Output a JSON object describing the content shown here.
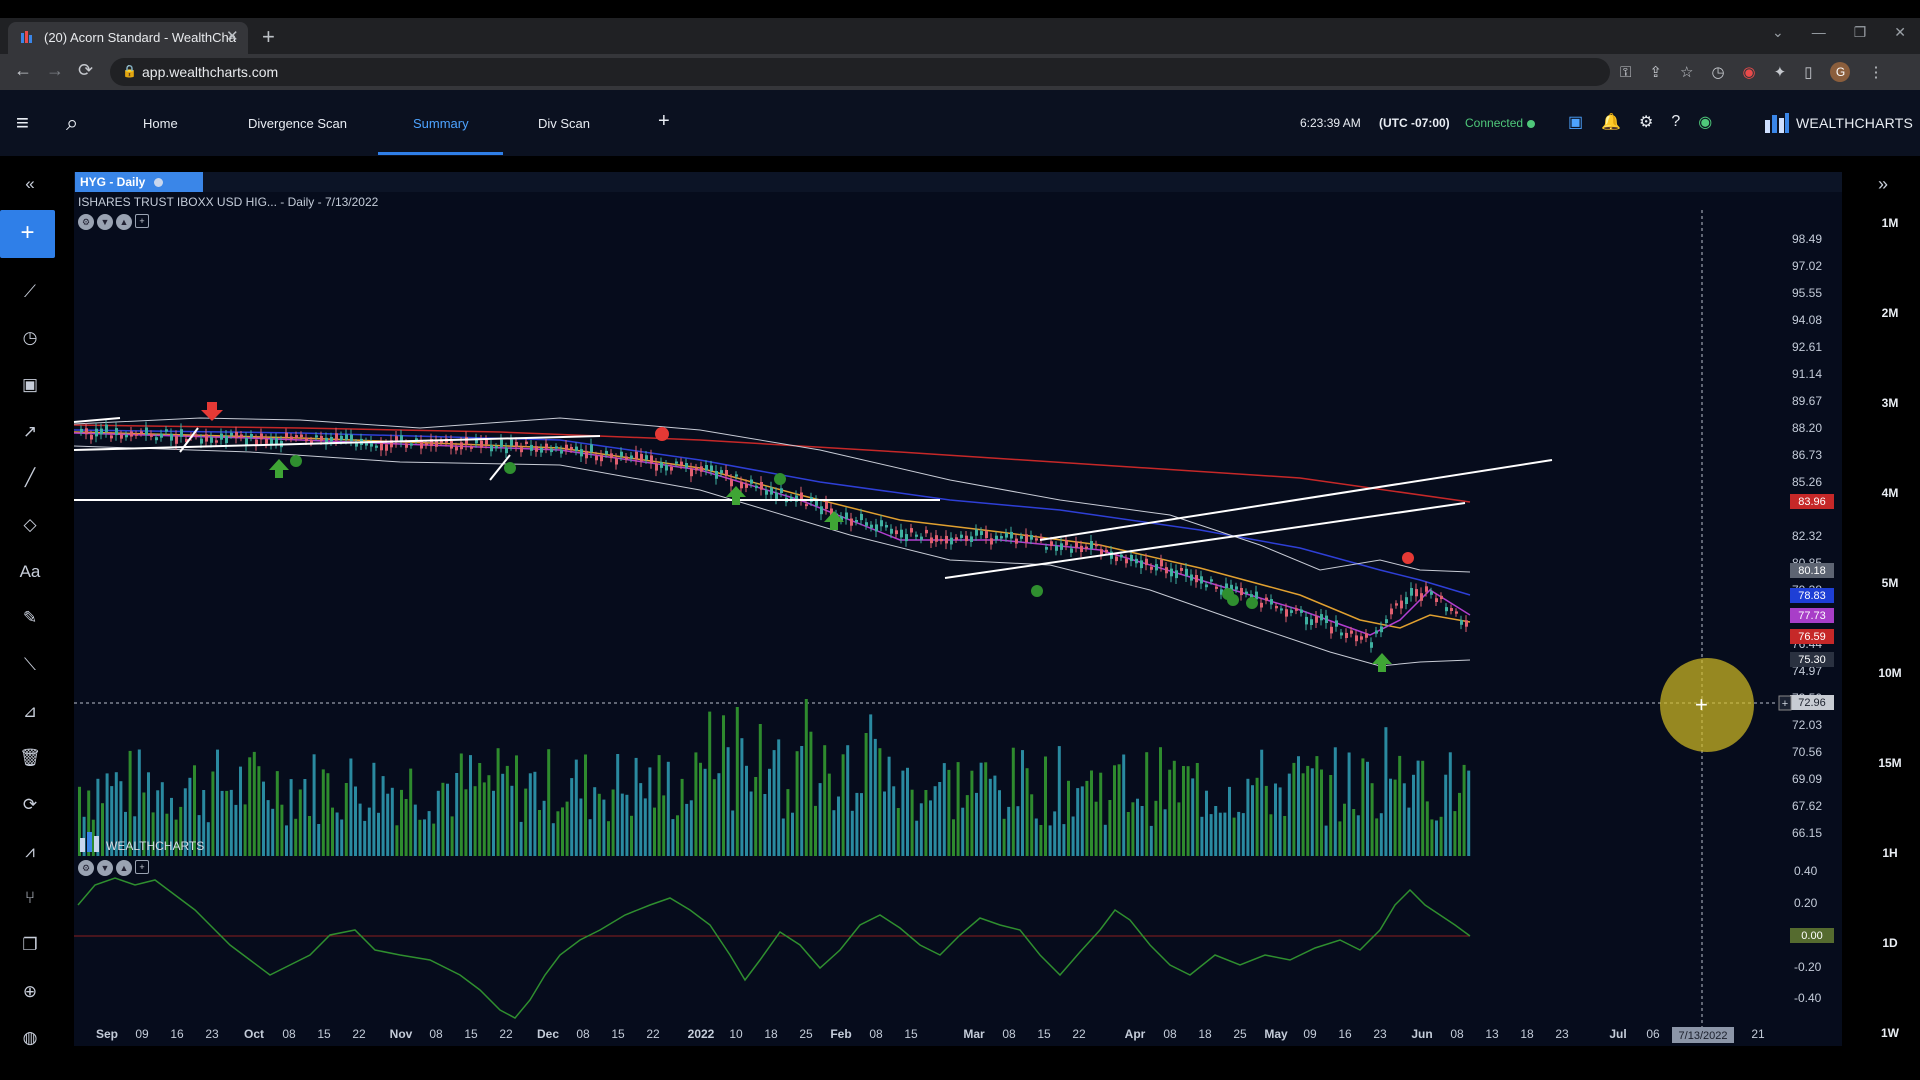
{
  "browser": {
    "tab_title": "(20) Acorn Standard - WealthCha",
    "tab_close": "✕",
    "new_tab": "+",
    "url": "app.wealthcharts.com",
    "win_minimize": "—",
    "win_restore": "❐",
    "win_close": "✕"
  },
  "nav": {
    "menu_icon": "≡",
    "search_icon": "⌕",
    "tabs": [
      "Home",
      "Divergence Scan",
      "Summary",
      "Div Scan"
    ],
    "add_tab": "+",
    "time": "6:23:39 AM",
    "timezone": "(UTC -07:00)",
    "status": "Connected",
    "brand": "WEALTHCHARTS"
  },
  "chart": {
    "symbol_badge": "HYG - Daily",
    "description": "ISHARES TRUST IBOXX USD HIG...",
    "interval_date": "- Daily - 7/13/2022",
    "watermark": "WEALTHCHARTS",
    "price_axis": [
      "98.49",
      "97.02",
      "95.55",
      "94.08",
      "92.61",
      "91.14",
      "89.67",
      "88.20",
      "86.73",
      "85.26",
      "82.32",
      "80.85",
      "79.38",
      "77.91",
      "76.44",
      "74.97",
      "73.50",
      "72.03",
      "70.56",
      "69.09",
      "67.62",
      "66.15"
    ],
    "price_tags": [
      {
        "label": "83.96",
        "color": "#c62828"
      },
      {
        "label": "80.18",
        "color": "#5d6472"
      },
      {
        "label": "78.83",
        "color": "#1e3fd6"
      },
      {
        "label": "77.73",
        "color": "#a83ec8"
      },
      {
        "label": "76.59",
        "color": "#c62828"
      },
      {
        "label": "75.30",
        "color": "#2a3140"
      },
      {
        "label": "72.96",
        "color": "#c8ccd3"
      }
    ],
    "osc_axis": [
      "0.40",
      "0.20",
      "-0.20",
      "-0.40"
    ],
    "osc_tag": "0.00",
    "date_axis": [
      "Sep",
      "09",
      "16",
      "23",
      "Oct",
      "08",
      "15",
      "22",
      "Nov",
      "08",
      "15",
      "22",
      "Dec",
      "08",
      "15",
      "22",
      "2022",
      "10",
      "18",
      "25",
      "Feb",
      "08",
      "15",
      "Mar",
      "08",
      "15",
      "22",
      "Apr",
      "08",
      "18",
      "25",
      "May",
      "09",
      "16",
      "23",
      "Jun",
      "08",
      "13",
      "18",
      "23",
      "Jul",
      "06",
      "21"
    ],
    "crosshair_date": "7/13/2022",
    "timeframes": [
      "1M",
      "2M",
      "3M",
      "4M",
      "5M",
      "10M",
      "15M",
      "1H",
      "1D",
      "1W"
    ]
  },
  "icons": {
    "left_toolbar": [
      "collapse-left-icon",
      "add-icon",
      "indicator-icon",
      "clock-icon",
      "calendar-icon",
      "trend-icon",
      "line-draw-icon",
      "shape-icon",
      "text-icon",
      "pencil-icon",
      "ruler-icon",
      "measure-icon",
      "trash-icon",
      "refresh-icon",
      "chart-line-icon",
      "node-graph-icon",
      "copy-icon",
      "crosshair-icon",
      "globe-icon"
    ],
    "left_glyphs": [
      "«",
      "+",
      "⟋",
      "◷",
      "▣",
      "↗",
      "╱",
      "◇",
      "Aa",
      "✎",
      "⟍",
      "⊿",
      "🗑",
      "⟳",
      "⩘",
      "⑂",
      "❐",
      "⊕",
      "◍"
    ]
  }
}
